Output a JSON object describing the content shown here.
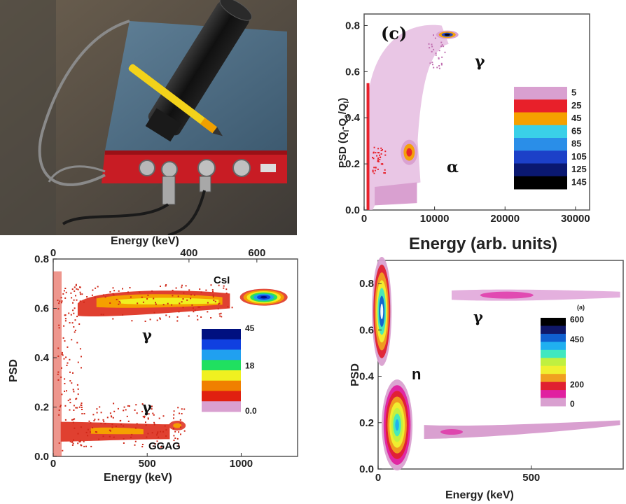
{
  "photo": {
    "description_icon": "hardware-photo"
  },
  "chart_data": [
    {
      "type": "heatmap",
      "panel_label": "(c)",
      "xlabel": "Energy (arb. units)",
      "ylabel": "PSD (Q_l-Q_s/Q_l)",
      "xlim": [
        0,
        32000
      ],
      "ylim": [
        0,
        0.85
      ],
      "xticks": [
        "0",
        "10000",
        "20000",
        "30000"
      ],
      "yticks": [
        "0.0",
        "0.2",
        "0.4",
        "0.6",
        "0.8"
      ],
      "annotations": [
        "γ",
        "α"
      ],
      "colorbar": {
        "levels": [
          "5",
          "25",
          "45",
          "65",
          "85",
          "105",
          "125",
          "145"
        ],
        "colors": [
          "#d9a0d0",
          "#e8202a",
          "#f5a000",
          "#3ad0e8",
          "#2a8ee8",
          "#1c40c8",
          "#0a1870",
          "#000000"
        ]
      },
      "clusters": [
        {
          "label": "γ",
          "x": 11800,
          "y": 0.76
        },
        {
          "label": "α",
          "x": 6400,
          "y": 0.25
        }
      ]
    },
    {
      "type": "heatmap",
      "xlabel": "Energy (keV)",
      "x2label": "Energy (keV)",
      "ylabel": "PSD",
      "xlim": [
        0,
        1300
      ],
      "x2lim": [
        0,
        720
      ],
      "ylim": [
        0,
        0.8
      ],
      "xticks": [
        "0",
        "500",
        "1000"
      ],
      "x2ticks": [
        "0",
        "400",
        "600"
      ],
      "yticks": [
        "0.0",
        "0.2",
        "0.4",
        "0.6",
        "0.8"
      ],
      "annotations": [
        "CsI",
        "γ",
        "γ",
        "GGAG"
      ],
      "colorbar": {
        "levels": [
          "45",
          "18",
          "0.0"
        ],
        "colors": [
          "#001080",
          "#1040e0",
          "#20a0f0",
          "#20e060",
          "#f0f020",
          "#f08000",
          "#e02010",
          "#d9a0d0"
        ]
      }
    },
    {
      "type": "heatmap",
      "xlabel": "Energy (keV)",
      "ylabel": "PSD",
      "xlim": [
        0,
        800
      ],
      "ylim": [
        0,
        0.9
      ],
      "xticks": [
        "0",
        "500"
      ],
      "yticks": [
        "0.0",
        "0.2",
        "0.4",
        "0.6",
        "0.8"
      ],
      "annotations": [
        "γ",
        "n"
      ],
      "colorbar": {
        "title": "(a)",
        "levels": [
          "600",
          "450",
          "200",
          "0"
        ],
        "colors": [
          "#000000",
          "#101868",
          "#1060d0",
          "#20b0f0",
          "#40e8c0",
          "#c0f040",
          "#f0f030",
          "#f0a020",
          "#e02030",
          "#e020a0",
          "#d9a0d0"
        ]
      }
    }
  ]
}
